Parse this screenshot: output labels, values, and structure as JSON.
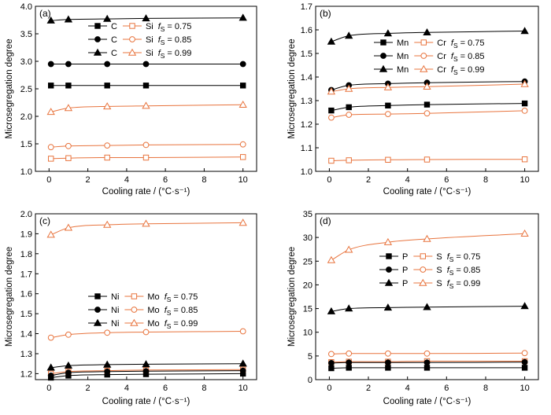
{
  "chart_data": [
    {
      "panel_label": "(a)",
      "type": "line",
      "xlabel": "Cooling rate / (°C·s⁻¹)",
      "ylabel": "Microsegregation degree",
      "x": [
        0.1,
        1,
        3,
        5,
        10
      ],
      "xlim": [
        -0.7,
        10.7
      ],
      "ylim": [
        1.0,
        4.0
      ],
      "xticks": [
        0,
        2,
        4,
        6,
        8,
        10
      ],
      "xtick_labels": [
        "0",
        "2",
        "4",
        "6",
        "8",
        "10"
      ],
      "yticks": [
        1.0,
        1.5,
        2.0,
        2.5,
        3.0,
        3.5,
        4.0
      ],
      "ytick_labels": [
        "1.0",
        "1.5",
        "2.0",
        "2.5",
        "3.0",
        "3.5",
        "4.0"
      ],
      "grid": false,
      "legend_position": "top-center",
      "legend_symbol": {
        "italic": "f",
        "subscript": "S"
      },
      "groups": [
        {
          "fraction_text": "= 0.75",
          "marker": "square",
          "series": [
            {
              "name": "C",
              "color": "#000000",
              "marker_fill": "filled",
              "values": [
                2.56,
                2.56,
                2.56,
                2.56,
                2.56
              ]
            },
            {
              "name": "Si",
              "color": "#E8743E",
              "marker_fill": "open",
              "values": [
                1.23,
                1.24,
                1.25,
                1.25,
                1.26
              ]
            }
          ]
        },
        {
          "fraction_text": "= 0.85",
          "marker": "circle",
          "series": [
            {
              "name": "C",
              "color": "#000000",
              "marker_fill": "filled",
              "values": [
                2.95,
                2.95,
                2.95,
                2.95,
                2.95
              ]
            },
            {
              "name": "Si",
              "color": "#E8743E",
              "marker_fill": "open",
              "values": [
                1.44,
                1.46,
                1.47,
                1.48,
                1.49
              ]
            }
          ]
        },
        {
          "fraction_text": "= 0.99",
          "marker": "triangle",
          "series": [
            {
              "name": "C",
              "color": "#000000",
              "marker_fill": "filled",
              "values": [
                3.74,
                3.76,
                3.77,
                3.78,
                3.79
              ]
            },
            {
              "name": "Si",
              "color": "#E8743E",
              "marker_fill": "open",
              "values": [
                2.08,
                2.15,
                2.18,
                2.19,
                2.21
              ]
            }
          ]
        }
      ]
    },
    {
      "panel_label": "(b)",
      "type": "line",
      "xlabel": "Cooling rate / (°C·s⁻¹)",
      "ylabel": "Microsegregation degree",
      "x": [
        0.1,
        1,
        3,
        5,
        10
      ],
      "xlim": [
        -0.7,
        10.7
      ],
      "ylim": [
        1.0,
        1.7
      ],
      "xticks": [
        0,
        2,
        4,
        6,
        8,
        10
      ],
      "xtick_labels": [
        "0",
        "2",
        "4",
        "6",
        "8",
        "10"
      ],
      "yticks": [
        1.0,
        1.1,
        1.2,
        1.3,
        1.4,
        1.5,
        1.6,
        1.7
      ],
      "ytick_labels": [
        "1.0",
        "1.1",
        "1.2",
        "1.3",
        "1.4",
        "1.5",
        "1.6",
        "1.7"
      ],
      "grid": false,
      "legend_position": "top-center",
      "legend_symbol": {
        "italic": "f",
        "subscript": "S"
      },
      "groups": [
        {
          "fraction_text": "= 0.75",
          "marker": "square",
          "series": [
            {
              "name": "Mn",
              "color": "#000000",
              "marker_fill": "filled",
              "values": [
                1.258,
                1.272,
                1.279,
                1.283,
                1.288
              ]
            },
            {
              "name": "Cr",
              "color": "#E8743E",
              "marker_fill": "open",
              "values": [
                1.045,
                1.047,
                1.049,
                1.05,
                1.051
              ]
            }
          ]
        },
        {
          "fraction_text": "= 0.85",
          "marker": "circle",
          "series": [
            {
              "name": "Mn",
              "color": "#000000",
              "marker_fill": "filled",
              "values": [
                1.345,
                1.365,
                1.372,
                1.376,
                1.381
              ]
            },
            {
              "name": "Cr",
              "color": "#E8743E",
              "marker_fill": "open",
              "values": [
                1.228,
                1.24,
                1.243,
                1.246,
                1.257
              ]
            }
          ]
        },
        {
          "fraction_text": "= 0.99",
          "marker": "triangle",
          "series": [
            {
              "name": "Mn",
              "color": "#000000",
              "marker_fill": "filled",
              "values": [
                1.55,
                1.575,
                1.585,
                1.589,
                1.595
              ]
            },
            {
              "name": "Cr",
              "color": "#E8743E",
              "marker_fill": "open",
              "values": [
                1.338,
                1.35,
                1.356,
                1.359,
                1.37
              ]
            }
          ]
        }
      ]
    },
    {
      "panel_label": "(c)",
      "type": "line",
      "xlabel": "Cooling rate / (°C·s⁻¹)",
      "ylabel": "Microsegregation degree",
      "x": [
        0.1,
        1,
        3,
        5,
        10
      ],
      "xlim": [
        -0.7,
        10.7
      ],
      "ylim": [
        1.17,
        2.0
      ],
      "xticks": [
        0,
        2,
        4,
        6,
        8,
        10
      ],
      "xtick_labels": [
        "0",
        "2",
        "4",
        "6",
        "8",
        "10"
      ],
      "yticks": [
        1.2,
        1.3,
        1.4,
        1.5,
        1.6,
        1.7,
        1.8,
        1.9,
        2.0
      ],
      "ytick_labels": [
        "1.2",
        "1.3",
        "1.4",
        "1.5",
        "1.6",
        "1.7",
        "1.8",
        "1.9",
        "2.0"
      ],
      "grid": false,
      "legend_position": "center",
      "legend_symbol": {
        "italic": "f",
        "subscript": "S"
      },
      "groups": [
        {
          "fraction_text": "= 0.75",
          "marker": "square",
          "series": [
            {
              "name": "Ni",
              "color": "#000000",
              "marker_fill": "filled",
              "values": [
                1.18,
                1.19,
                1.195,
                1.197,
                1.2
              ]
            },
            {
              "name": "Mo",
              "color": "#E8743E",
              "marker_fill": "open",
              "values": [
                1.2,
                1.21,
                1.215,
                1.218,
                1.22
              ]
            }
          ]
        },
        {
          "fraction_text": "= 0.85",
          "marker": "circle",
          "series": [
            {
              "name": "Ni",
              "color": "#000000",
              "marker_fill": "filled",
              "values": [
                1.19,
                1.205,
                1.21,
                1.212,
                1.215
              ]
            },
            {
              "name": "Mo",
              "color": "#E8743E",
              "marker_fill": "open",
              "values": [
                1.38,
                1.395,
                1.405,
                1.408,
                1.412
              ]
            }
          ]
        },
        {
          "fraction_text": "= 0.99",
          "marker": "triangle",
          "series": [
            {
              "name": "Ni",
              "color": "#000000",
              "marker_fill": "filled",
              "values": [
                1.23,
                1.24,
                1.245,
                1.247,
                1.25
              ]
            },
            {
              "name": "Mo",
              "color": "#E8743E",
              "marker_fill": "open",
              "values": [
                1.895,
                1.93,
                1.945,
                1.95,
                1.955
              ]
            }
          ]
        }
      ]
    },
    {
      "panel_label": "(d)",
      "type": "line",
      "xlabel": "Cooling rate / (°C·s⁻¹)",
      "ylabel": "Microsegregation degree",
      "x": [
        0.1,
        1,
        3,
        5,
        10
      ],
      "xlim": [
        -0.7,
        10.7
      ],
      "ylim": [
        0,
        35
      ],
      "xticks": [
        0,
        2,
        4,
        6,
        8,
        10
      ],
      "xtick_labels": [
        "0",
        "2",
        "4",
        "6",
        "8",
        "10"
      ],
      "yticks": [
        0,
        5,
        10,
        15,
        20,
        25,
        30,
        35
      ],
      "ytick_labels": [
        "0",
        "5",
        "10",
        "15",
        "20",
        "25",
        "30",
        "35"
      ],
      "grid": false,
      "legend_position": "top-center",
      "legend_symbol": {
        "italic": "f",
        "subscript": "S"
      },
      "groups": [
        {
          "fraction_text": "= 0.75",
          "marker": "square",
          "series": [
            {
              "name": "P",
              "color": "#000000",
              "marker_fill": "filled",
              "values": [
                2.4,
                2.5,
                2.5,
                2.5,
                2.5
              ]
            },
            {
              "name": "S",
              "color": "#E8743E",
              "marker_fill": "open",
              "values": [
                3.7,
                3.8,
                3.8,
                3.9,
                3.9
              ]
            }
          ]
        },
        {
          "fraction_text": "= 0.85",
          "marker": "circle",
          "series": [
            {
              "name": "P",
              "color": "#000000",
              "marker_fill": "filled",
              "values": [
                3.5,
                3.6,
                3.6,
                3.6,
                3.7
              ]
            },
            {
              "name": "S",
              "color": "#E8743E",
              "marker_fill": "open",
              "values": [
                5.4,
                5.5,
                5.5,
                5.5,
                5.6
              ]
            }
          ]
        },
        {
          "fraction_text": "= 0.99",
          "marker": "triangle",
          "series": [
            {
              "name": "P",
              "color": "#000000",
              "marker_fill": "filled",
              "values": [
                14.4,
                15.0,
                15.2,
                15.3,
                15.5
              ]
            },
            {
              "name": "S",
              "color": "#E8743E",
              "marker_fill": "open",
              "values": [
                25.2,
                27.4,
                29.0,
                29.7,
                30.8
              ]
            }
          ]
        }
      ]
    }
  ]
}
